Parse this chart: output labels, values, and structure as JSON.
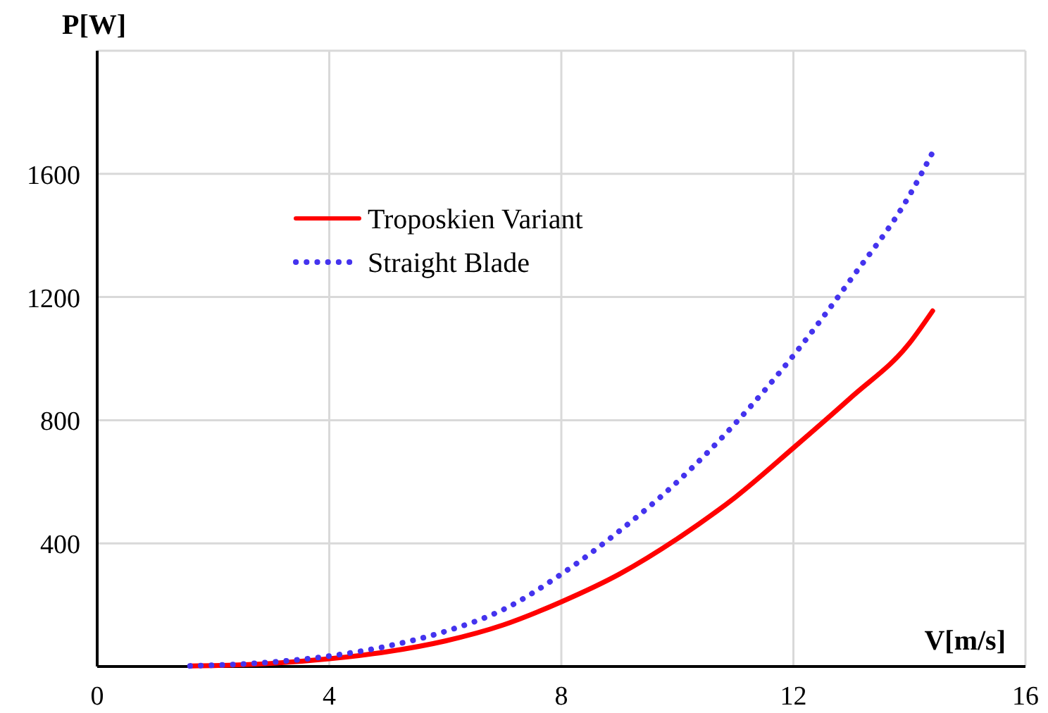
{
  "chart_data": {
    "type": "line",
    "xlabel": "V[m/s]",
    "ylabel": "P[W]",
    "x": [
      1.6,
      2,
      3,
      4,
      5,
      6,
      7,
      8,
      9,
      10,
      11,
      12,
      13,
      14,
      14.4
    ],
    "series": [
      {
        "name": "Troposkien Variant",
        "color": "#ff0000",
        "line_style": "solid",
        "values": [
          2,
          3,
          10,
          25,
          48,
          83,
          135,
          210,
          300,
          415,
          550,
          710,
          875,
          1050,
          1155
        ]
      },
      {
        "name": "Straight Blade",
        "color": "#4433ee",
        "line_style": "dotted",
        "values": [
          2,
          4,
          14,
          34,
          66,
          114,
          185,
          300,
          440,
          600,
          790,
          1010,
          1260,
          1530,
          1670
        ]
      }
    ],
    "xlim": [
      0,
      16
    ],
    "xticks": [
      0,
      4,
      8,
      12,
      16
    ],
    "ylim": [
      0,
      2000
    ],
    "yticks": [
      400,
      800,
      1200,
      1600,
      {
        "value": 2000,
        "label": null
      }
    ],
    "grid": true,
    "legend": "top left"
  }
}
